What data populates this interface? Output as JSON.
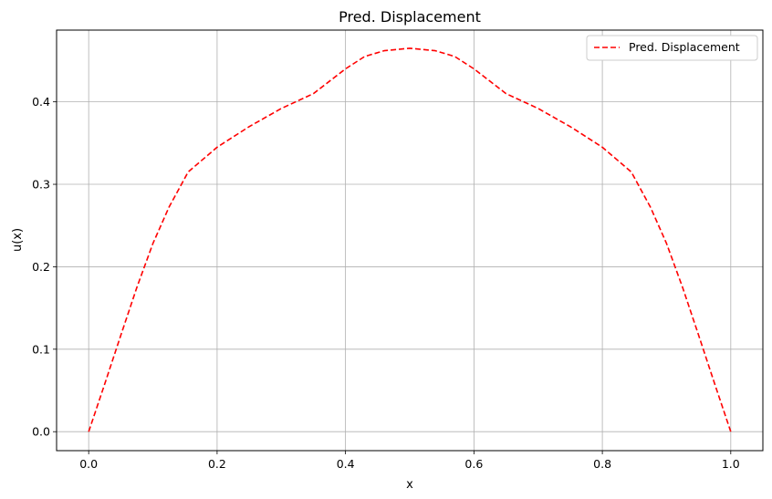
{
  "chart_data": {
    "type": "line",
    "title": "Pred. Displacement",
    "xlabel": "x",
    "ylabel": "u(x)",
    "xlim": [
      -0.05,
      1.05
    ],
    "ylim": [
      -0.023,
      0.487
    ],
    "xticks": [
      0.0,
      0.2,
      0.4,
      0.6,
      0.8,
      1.0
    ],
    "xtick_labels": [
      "0.0",
      "0.2",
      "0.4",
      "0.6",
      "0.8",
      "1.0"
    ],
    "yticks": [
      0.0,
      0.1,
      0.2,
      0.3,
      0.4
    ],
    "ytick_labels": [
      "0.0",
      "0.1",
      "0.2",
      "0.3",
      "0.4"
    ],
    "grid": true,
    "legend_position": "top-right",
    "series": [
      {
        "name": "Pred. Displacement",
        "color": "#ff0000",
        "line_style": "dashed",
        "x": [
          0.0,
          0.025,
          0.05,
          0.075,
          0.1,
          0.125,
          0.155,
          0.2,
          0.25,
          0.3,
          0.35,
          0.4,
          0.43,
          0.46,
          0.5,
          0.54,
          0.57,
          0.6,
          0.65,
          0.7,
          0.75,
          0.8,
          0.845,
          0.875,
          0.9,
          0.925,
          0.95,
          0.975,
          1.0
        ],
        "y": [
          0.0,
          0.058,
          0.117,
          0.175,
          0.228,
          0.272,
          0.315,
          0.345,
          0.37,
          0.392,
          0.41,
          0.44,
          0.455,
          0.462,
          0.465,
          0.462,
          0.455,
          0.44,
          0.41,
          0.392,
          0.37,
          0.345,
          0.315,
          0.272,
          0.228,
          0.175,
          0.117,
          0.058,
          0.0
        ]
      }
    ]
  }
}
